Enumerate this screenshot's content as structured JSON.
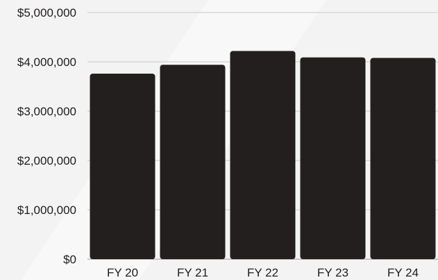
{
  "chart_data": {
    "type": "bar",
    "title": "",
    "xlabel": "",
    "ylabel": "",
    "categories": [
      "FY 20",
      "FY 21",
      "FY 22",
      "FY 23",
      "FY 24"
    ],
    "values": [
      3760000,
      3940000,
      4220000,
      4090000,
      4080000
    ],
    "ylim": [
      0,
      5000000
    ],
    "yticks": [
      0,
      1000000,
      2000000,
      3000000,
      4000000,
      5000000
    ],
    "ytick_labels": [
      "$0",
      "$1,000,000",
      "$2,000,000",
      "$3,000,000",
      "$4,000,000",
      "$5,000,000"
    ],
    "grid": true,
    "legend": "none",
    "bar_color": "#231f1f",
    "background_color": "#f3f3f3"
  }
}
